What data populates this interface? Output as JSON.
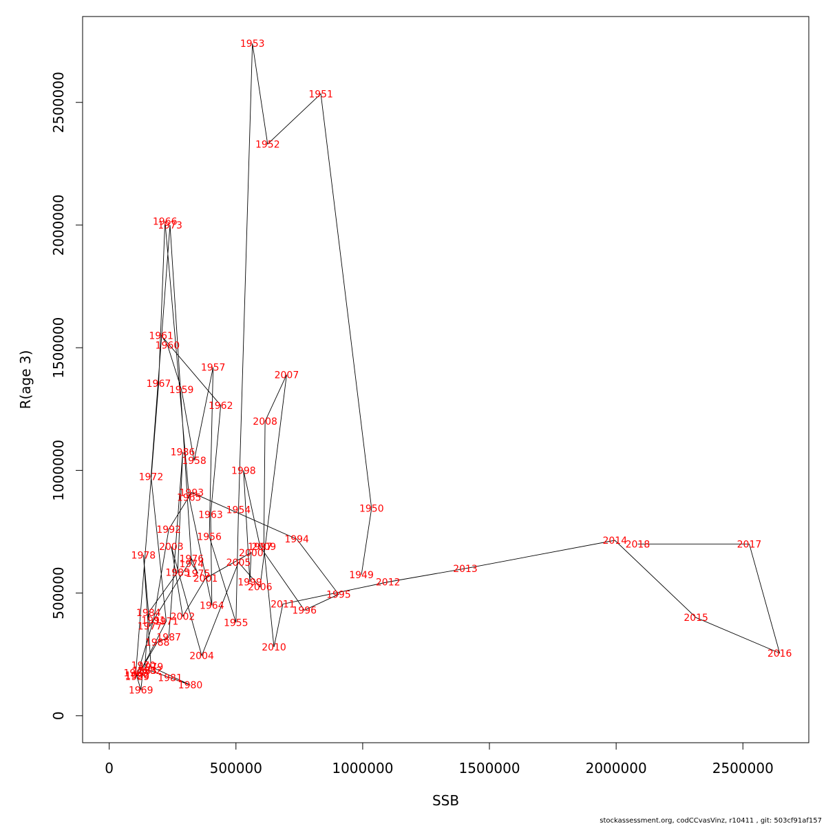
{
  "chart_data": {
    "type": "line",
    "title": "",
    "xlabel": "SSB",
    "ylabel": "R(age 3)",
    "xlim": [
      -105000,
      2760000
    ],
    "ylim": [
      -110000,
      2850000
    ],
    "xticks": [
      0,
      500000,
      1000000,
      1500000,
      2000000,
      2500000
    ],
    "yticks": [
      0,
      500000,
      1000000,
      1500000,
      2000000,
      2500000
    ],
    "grid": false,
    "legend": "none",
    "line_color": "#000000",
    "label_color": "#ff0000",
    "series": [
      {
        "points": [
          {
            "year": "1949",
            "x": 995000,
            "y": 575000
          },
          {
            "year": "1950",
            "x": 1035000,
            "y": 845000
          },
          {
            "year": "1951",
            "x": 835000,
            "y": 2535000
          },
          {
            "year": "1952",
            "x": 625000,
            "y": 2330000
          },
          {
            "year": "1953",
            "x": 565000,
            "y": 2740000
          },
          {
            "year": "1954",
            "x": 510000,
            "y": 840000
          },
          {
            "year": "1955",
            "x": 500000,
            "y": 380000
          },
          {
            "year": "1956",
            "x": 395000,
            "y": 730000
          },
          {
            "year": "1957",
            "x": 410000,
            "y": 1420000
          },
          {
            "year": "1958",
            "x": 335000,
            "y": 1040000
          },
          {
            "year": "1959",
            "x": 285000,
            "y": 1330000
          },
          {
            "year": "1960",
            "x": 230000,
            "y": 1510000
          },
          {
            "year": "1961",
            "x": 205000,
            "y": 1550000
          },
          {
            "year": "1962",
            "x": 440000,
            "y": 1265000
          },
          {
            "year": "1963",
            "x": 400000,
            "y": 820000
          },
          {
            "year": "1964",
            "x": 405000,
            "y": 450000
          },
          {
            "year": "1965",
            "x": 315000,
            "y": 890000
          },
          {
            "year": "1966",
            "x": 220000,
            "y": 2015000
          },
          {
            "year": "1967",
            "x": 195000,
            "y": 1355000
          },
          {
            "year": "1968",
            "x": 105000,
            "y": 175000
          },
          {
            "year": "1969",
            "x": 125000,
            "y": 105000
          },
          {
            "year": "1970",
            "x": 135000,
            "y": 205000
          },
          {
            "year": "1971",
            "x": 225000,
            "y": 385000
          },
          {
            "year": "1972",
            "x": 165000,
            "y": 975000
          },
          {
            "year": "1973",
            "x": 240000,
            "y": 2000000
          },
          {
            "year": "1974",
            "x": 325000,
            "y": 620000
          },
          {
            "year": "1975",
            "x": 350000,
            "y": 580000
          },
          {
            "year": "1976",
            "x": 325000,
            "y": 640000
          },
          {
            "year": "1977",
            "x": 160000,
            "y": 365000
          },
          {
            "year": "1978",
            "x": 135000,
            "y": 655000
          },
          {
            "year": "1979",
            "x": 165000,
            "y": 200000
          },
          {
            "year": "1980",
            "x": 320000,
            "y": 125000
          },
          {
            "year": "1981",
            "x": 240000,
            "y": 155000
          },
          {
            "year": "1982",
            "x": 160000,
            "y": 185000
          },
          {
            "year": "1983",
            "x": 140000,
            "y": 185000
          },
          {
            "year": "1984",
            "x": 155000,
            "y": 420000
          },
          {
            "year": "1985",
            "x": 270000,
            "y": 585000
          },
          {
            "year": "1986",
            "x": 290000,
            "y": 1075000
          },
          {
            "year": "1987",
            "x": 235000,
            "y": 320000
          },
          {
            "year": "1988",
            "x": 190000,
            "y": 300000
          },
          {
            "year": "1989",
            "x": 110000,
            "y": 160000
          },
          {
            "year": "1990",
            "x": 110000,
            "y": 165000
          },
          {
            "year": "1991",
            "x": 175000,
            "y": 390000
          },
          {
            "year": "1992",
            "x": 235000,
            "y": 760000
          },
          {
            "year": "1993",
            "x": 325000,
            "y": 910000
          },
          {
            "year": "1994",
            "x": 740000,
            "y": 720000
          },
          {
            "year": "1995",
            "x": 905000,
            "y": 495000
          },
          {
            "year": "1996",
            "x": 770000,
            "y": 430000
          },
          {
            "year": "1997",
            "x": 595000,
            "y": 690000
          },
          {
            "year": "1998",
            "x": 530000,
            "y": 1000000
          },
          {
            "year": "1999",
            "x": 555000,
            "y": 545000
          },
          {
            "year": "2000",
            "x": 560000,
            "y": 665000
          },
          {
            "year": "2001",
            "x": 380000,
            "y": 560000
          },
          {
            "year": "2002",
            "x": 290000,
            "y": 405000
          },
          {
            "year": "2003",
            "x": 245000,
            "y": 690000
          },
          {
            "year": "2004",
            "x": 365000,
            "y": 245000
          },
          {
            "year": "2005",
            "x": 510000,
            "y": 625000
          },
          {
            "year": "2006",
            "x": 595000,
            "y": 525000
          },
          {
            "year": "2007",
            "x": 700000,
            "y": 1390000
          },
          {
            "year": "2008",
            "x": 615000,
            "y": 1200000
          },
          {
            "year": "2009",
            "x": 610000,
            "y": 690000
          },
          {
            "year": "2010",
            "x": 650000,
            "y": 280000
          },
          {
            "year": "2011",
            "x": 685000,
            "y": 455000
          },
          {
            "year": "2012",
            "x": 1100000,
            "y": 545000
          },
          {
            "year": "2013",
            "x": 1405000,
            "y": 600000
          },
          {
            "year": "2014",
            "x": 1995000,
            "y": 715000
          },
          {
            "year": "2015",
            "x": 2315000,
            "y": 400000
          },
          {
            "year": "2016",
            "x": 2645000,
            "y": 255000
          },
          {
            "year": "2017",
            "x": 2525000,
            "y": 700000
          },
          {
            "year": "2018",
            "x": 2085000,
            "y": 700000
          }
        ]
      }
    ]
  },
  "footer": {
    "text": "stockassessment.org, codCCvasVinz, r10411 , git: 503cf91af157"
  }
}
